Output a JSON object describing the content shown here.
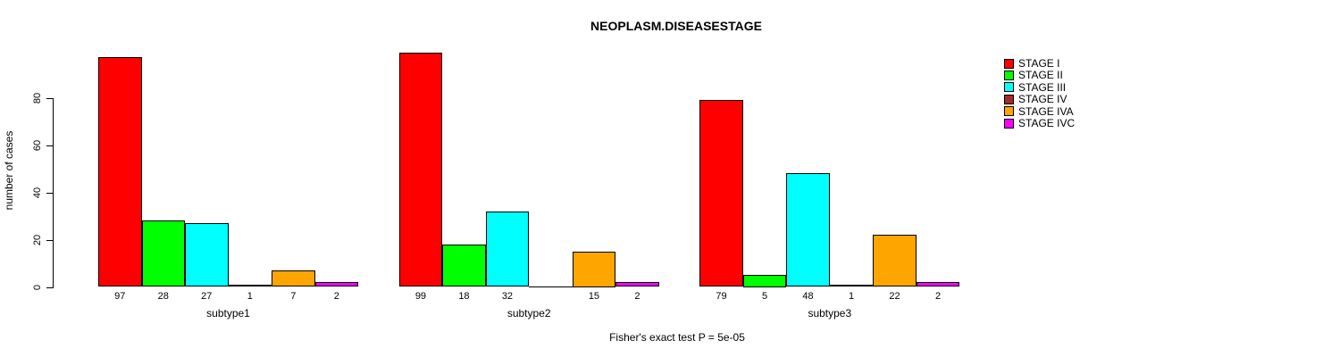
{
  "title": "NEOPLASM.DISEASESTAGE",
  "chart_data": {
    "type": "bar",
    "title": "NEOPLASM.DISEASESTAGE",
    "xlabel": "",
    "ylabel": "number of cases",
    "ylim": [
      0,
      100
    ],
    "yticks": [
      0,
      20,
      40,
      60,
      80
    ],
    "grid": false,
    "legend_position": "right",
    "categories": [
      "subtype1",
      "subtype2",
      "subtype3"
    ],
    "series": [
      {
        "name": "STAGE I",
        "color": "#FF0000",
        "values": [
          97,
          99,
          79
        ]
      },
      {
        "name": "STAGE II",
        "color": "#00FF00",
        "values": [
          28,
          18,
          5
        ]
      },
      {
        "name": "STAGE III",
        "color": "#00FFFF",
        "values": [
          27,
          32,
          48
        ]
      },
      {
        "name": "STAGE IV",
        "color": "#A52A2A",
        "values": [
          1,
          0,
          1
        ]
      },
      {
        "name": "STAGE IVA",
        "color": "#FFA500",
        "values": [
          7,
          15,
          22
        ]
      },
      {
        "name": "STAGE IVC",
        "color": "#FF00FF",
        "values": [
          2,
          2,
          2
        ]
      }
    ],
    "bar_labels": [
      [
        "97",
        "28",
        "27",
        "1",
        "7",
        "2"
      ],
      [
        "99",
        "18",
        "32",
        "",
        "15",
        "2"
      ],
      [
        "79",
        "5",
        "48",
        "1",
        "22",
        "2"
      ]
    ],
    "annotation": "Fisher's exact test P = 5e-05"
  }
}
